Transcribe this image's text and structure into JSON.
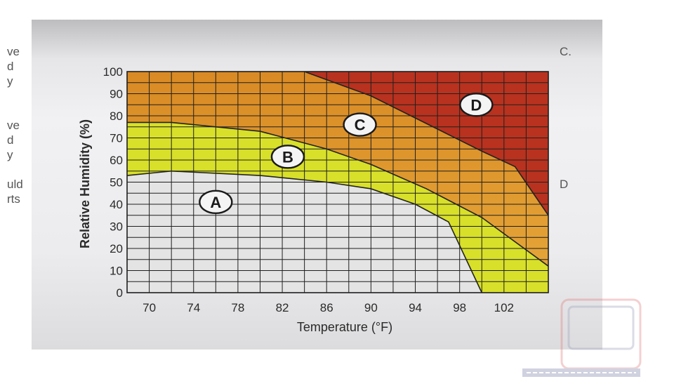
{
  "side_text": {
    "left": [
      "ve",
      "d",
      "y",
      "",
      "",
      "ve",
      "d",
      "y",
      "",
      "uld",
      "rts"
    ],
    "right": [
      "C.",
      "",
      "",
      "",
      "",
      "",
      "",
      "",
      "",
      "D",
      ""
    ]
  },
  "colors": {
    "zone_a": "#e4e4e4",
    "zone_b": "#d8e02a",
    "zone_c_top": "#d98a24",
    "zone_c_bottom": "#e6a83a",
    "zone_d": "#b8321f",
    "grid": "#1f1f1f",
    "background": "#ececee"
  },
  "chart_data": {
    "type": "area",
    "xlabel": "Temperature (°F)",
    "ylabel": "Relative Humidity (%)",
    "xlim": [
      68,
      106
    ],
    "ylim": [
      0,
      100
    ],
    "x_ticks": [
      70,
      74,
      78,
      82,
      86,
      90,
      94,
      98,
      102
    ],
    "y_ticks": [
      0,
      10,
      20,
      30,
      40,
      50,
      60,
      70,
      80,
      90,
      100
    ],
    "grid": true,
    "boundaries": [
      {
        "between": [
          "A",
          "B"
        ],
        "points": [
          [
            68,
            53
          ],
          [
            72,
            55
          ],
          [
            80,
            53
          ],
          [
            86,
            50
          ],
          [
            90,
            47
          ],
          [
            94,
            40
          ],
          [
            97,
            32
          ],
          [
            100,
            0
          ]
        ]
      },
      {
        "between": [
          "B",
          "C"
        ],
        "points": [
          [
            68,
            77
          ],
          [
            72,
            77
          ],
          [
            80,
            73
          ],
          [
            86,
            65
          ],
          [
            90,
            58
          ],
          [
            95,
            47
          ],
          [
            100,
            34
          ],
          [
            106,
            12
          ]
        ]
      },
      {
        "between": [
          "C",
          "D"
        ],
        "points": [
          [
            84,
            100
          ],
          [
            90,
            89
          ],
          [
            96,
            74
          ],
          [
            100,
            64
          ],
          [
            103,
            57
          ],
          [
            106,
            35
          ]
        ]
      }
    ],
    "zones": [
      {
        "label": "A",
        "x": 76,
        "y": 41
      },
      {
        "label": "B",
        "x": 82.5,
        "y": 61.5
      },
      {
        "label": "C",
        "x": 89,
        "y": 76
      },
      {
        "label": "D",
        "x": 99.5,
        "y": 85
      }
    ]
  }
}
